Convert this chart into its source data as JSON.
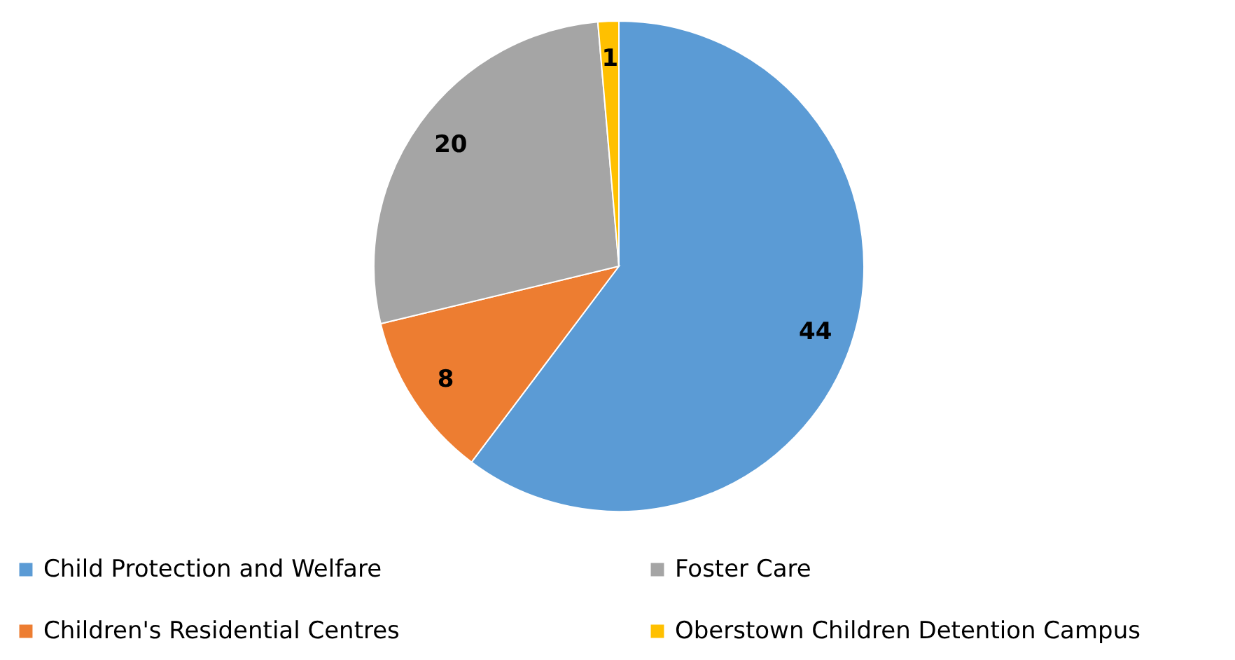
{
  "chart_data": {
    "type": "pie",
    "categories": [
      "Child Protection and Welfare",
      "Children's Residential Centres",
      "Foster Care",
      "Oberstown Children Detention Campus"
    ],
    "values": [
      44,
      8,
      20,
      1
    ],
    "colors": [
      "#5b9bd5",
      "#ed7d31",
      "#a5a5a5",
      "#ffc000"
    ],
    "data_labels": true,
    "legend": "bottom"
  }
}
